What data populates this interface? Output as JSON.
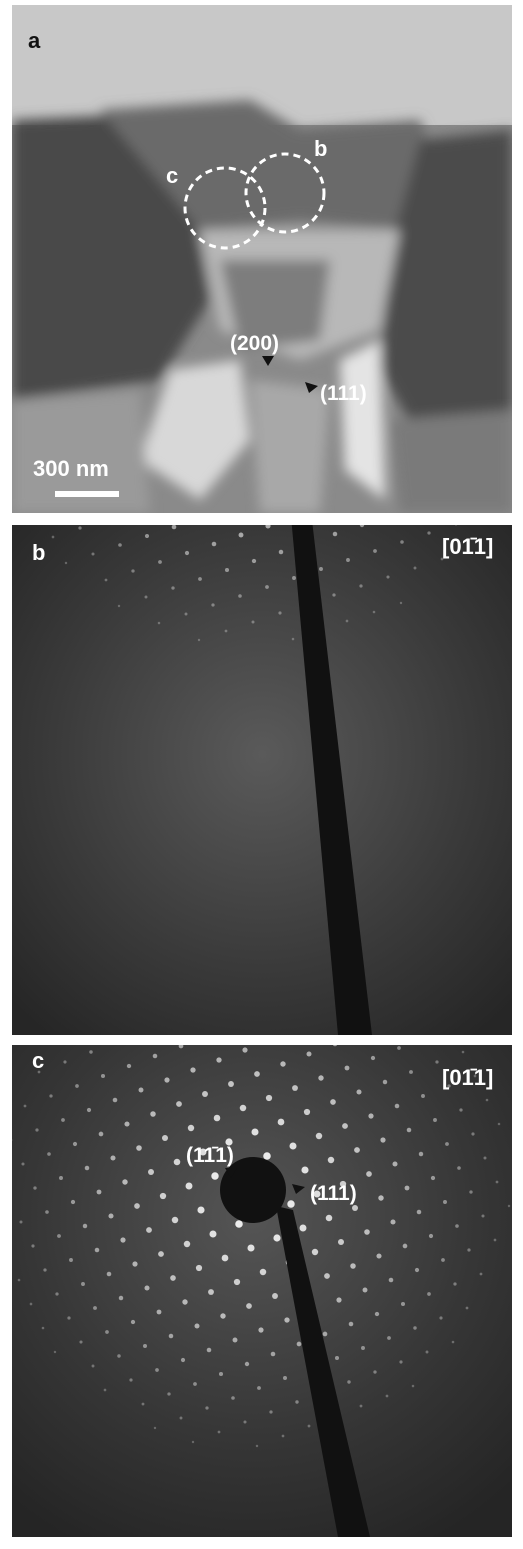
{
  "panels": [
    {
      "label": "a",
      "regions": [
        "c",
        "b"
      ],
      "scale_bar": "300 nm"
    },
    {
      "label": "b",
      "zone_axis": "[01̄1]",
      "reflections": [
        "(200)",
        "(111)"
      ]
    },
    {
      "label": "c",
      "zone_axis": "[01̄1]",
      "reflections": [
        "(11̄1)",
        "(111)"
      ]
    }
  ]
}
